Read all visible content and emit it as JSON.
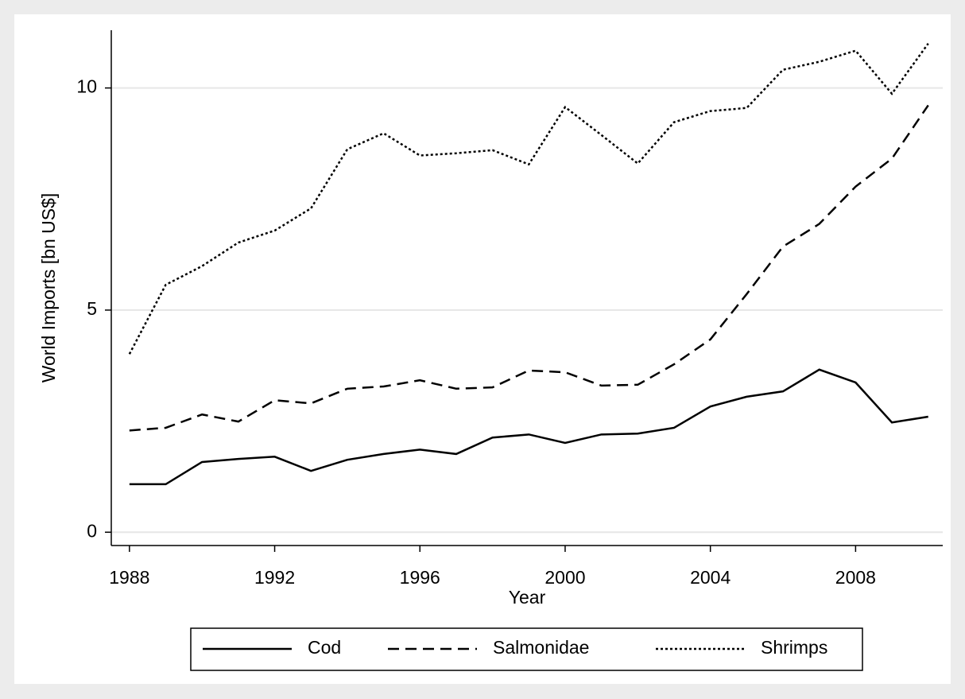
{
  "chart_data": {
    "type": "line",
    "x": [
      1988,
      1989,
      1990,
      1991,
      1992,
      1993,
      1994,
      1995,
      1996,
      1997,
      1998,
      1999,
      2000,
      2001,
      2002,
      2003,
      2004,
      2005,
      2006,
      2007,
      2008,
      2009,
      2010
    ],
    "series": [
      {
        "name": "Cod",
        "color": "#000000",
        "style": "solid",
        "values": [
          1.08,
          1.08,
          1.58,
          1.65,
          1.7,
          1.38,
          1.63,
          1.76,
          1.86,
          1.76,
          2.13,
          2.2,
          2.01,
          2.2,
          2.22,
          2.35,
          2.83,
          3.05,
          3.17,
          3.66,
          3.37,
          2.47,
          2.6
        ]
      },
      {
        "name": "Salmonidae",
        "color": "#000000",
        "style": "dashed",
        "values": [
          2.29,
          2.35,
          2.65,
          2.49,
          2.97,
          2.9,
          3.23,
          3.28,
          3.42,
          3.23,
          3.26,
          3.64,
          3.6,
          3.3,
          3.32,
          3.78,
          4.34,
          5.36,
          6.43,
          6.94,
          7.78,
          8.41,
          9.61
        ]
      },
      {
        "name": "Shrimps",
        "color": "#000000",
        "style": "dotted",
        "values": [
          4.01,
          5.57,
          5.99,
          6.52,
          6.79,
          7.29,
          8.62,
          8.98,
          8.48,
          8.53,
          8.6,
          8.28,
          9.57,
          8.94,
          8.3,
          9.23,
          9.48,
          9.55,
          10.41,
          10.59,
          10.84,
          9.87,
          11.0
        ]
      }
    ],
    "xlabel": "Year",
    "ylabel": "World Imports [bn US$]",
    "xlim": [
      1987.5,
      2010.4
    ],
    "xticks": [
      1988,
      1992,
      1996,
      2000,
      2004,
      2008
    ],
    "ylim": [
      -0.3,
      11.3
    ],
    "yticks": [
      0,
      5,
      10
    ],
    "grid": true,
    "legend": "bottom"
  }
}
